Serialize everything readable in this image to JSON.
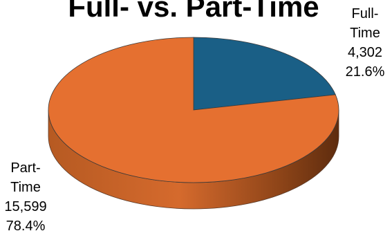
{
  "chart_data": {
    "type": "pie",
    "title": "Full- vs. Part-Time",
    "slices": [
      {
        "name": "Full-Time",
        "value": 4302,
        "percent": 21.6,
        "color": "#1a5f86",
        "label_lines": [
          "Full-",
          "Time",
          "4,302",
          "21.6%"
        ]
      },
      {
        "name": "Part-Time",
        "value": 15599,
        "percent": 78.4,
        "color": "#e57030",
        "label_lines": [
          "Part-",
          "Time",
          "15,599",
          "78.4%"
        ]
      }
    ],
    "style": "3d-tilted",
    "legend": "none"
  }
}
